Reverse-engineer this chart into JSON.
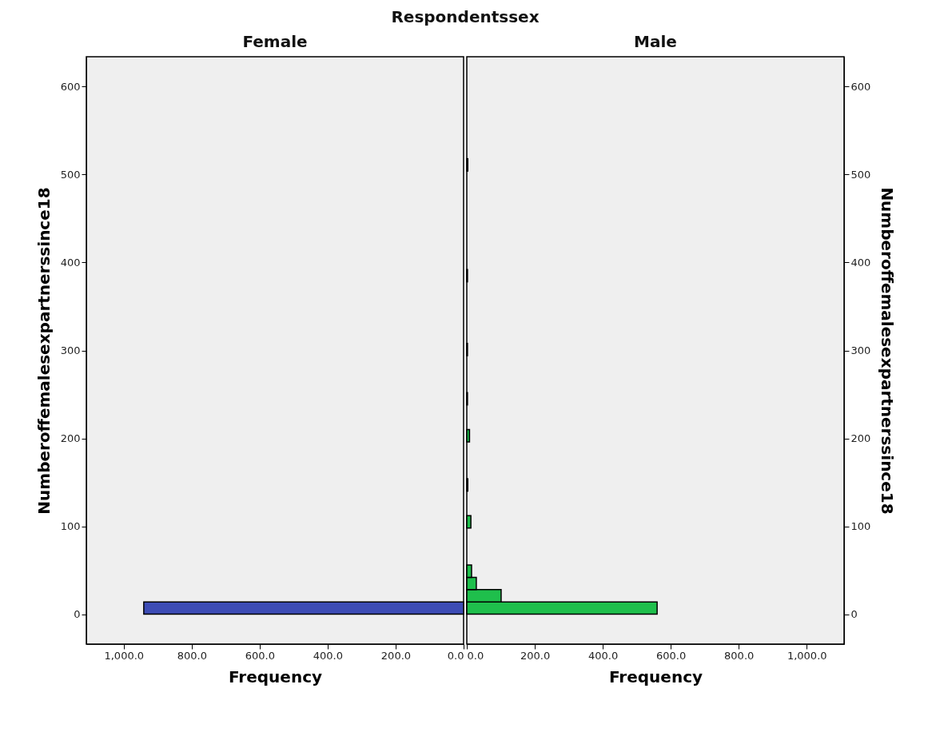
{
  "chart_data": [
    {
      "type": "histogram",
      "orientation": "horizontal",
      "title": "Respondentssex",
      "subtitle": "Female",
      "xlabel": "Frequency",
      "ylabel": "Numberoffemalesexpartnerssince18",
      "color": "#3d4cb5",
      "bins": [
        0,
        14,
        28,
        42,
        56,
        70,
        84,
        98,
        112,
        126,
        140,
        154,
        168,
        182,
        196,
        210,
        224,
        238,
        252,
        266,
        280,
        294,
        308,
        322,
        336,
        350,
        364,
        378,
        392,
        406,
        420,
        434,
        448,
        462,
        476,
        490,
        504,
        518
      ],
      "values": [
        941,
        0,
        0,
        0,
        0,
        0,
        0,
        0,
        0,
        0,
        0,
        0,
        0,
        0,
        0,
        0,
        0,
        0,
        0,
        0,
        0,
        0,
        0,
        0,
        0,
        0,
        0,
        0,
        0,
        0,
        0,
        0,
        0,
        0,
        0,
        0,
        0
      ],
      "xlim": [
        1110,
        0
      ],
      "xticks": [
        {
          "value": 1000,
          "label": "1,000.0"
        },
        {
          "value": 800,
          "label": "800.0"
        },
        {
          "value": 600,
          "label": "600.0"
        },
        {
          "value": 400,
          "label": "400.0"
        },
        {
          "value": 200,
          "label": "200.0"
        },
        {
          "value": 0,
          "label": "0.0"
        }
      ],
      "ylim": [
        -34,
        634
      ],
      "yticks": [
        0,
        100,
        200,
        300,
        400,
        500,
        600
      ],
      "grid": false
    },
    {
      "type": "histogram",
      "orientation": "horizontal",
      "subtitle": "Male",
      "xlabel": "Frequency",
      "ylabel": "Numberoffemalesexpartnerssince18",
      "color": "#1fbf4c",
      "bins": [
        0,
        14,
        28,
        42,
        56,
        70,
        84,
        98,
        112,
        126,
        140,
        154,
        168,
        182,
        196,
        210,
        224,
        238,
        252,
        266,
        280,
        294,
        308,
        322,
        336,
        350,
        364,
        378,
        392,
        406,
        420,
        434,
        448,
        462,
        476,
        490,
        504,
        518
      ],
      "values": [
        560,
        101,
        28,
        14,
        0,
        0,
        0,
        12,
        0,
        0,
        3,
        0,
        0,
        0,
        8,
        0,
        0,
        2,
        0,
        0,
        0,
        2,
        0,
        0,
        0,
        0,
        0,
        2,
        0,
        0,
        0,
        0,
        0,
        0,
        0,
        0,
        3
      ],
      "xlim": [
        0,
        1110
      ],
      "xticks": [
        {
          "value": 0,
          "label": "0.0"
        },
        {
          "value": 200,
          "label": "200.0"
        },
        {
          "value": 400,
          "label": "400.0"
        },
        {
          "value": 600,
          "label": "600.0"
        },
        {
          "value": 800,
          "label": "800.0"
        },
        {
          "value": 1000,
          "label": "1,000.0"
        }
      ],
      "ylim": [
        -34,
        634
      ],
      "yticks": [
        0,
        100,
        200,
        300,
        400,
        500,
        600
      ],
      "grid": false
    }
  ]
}
